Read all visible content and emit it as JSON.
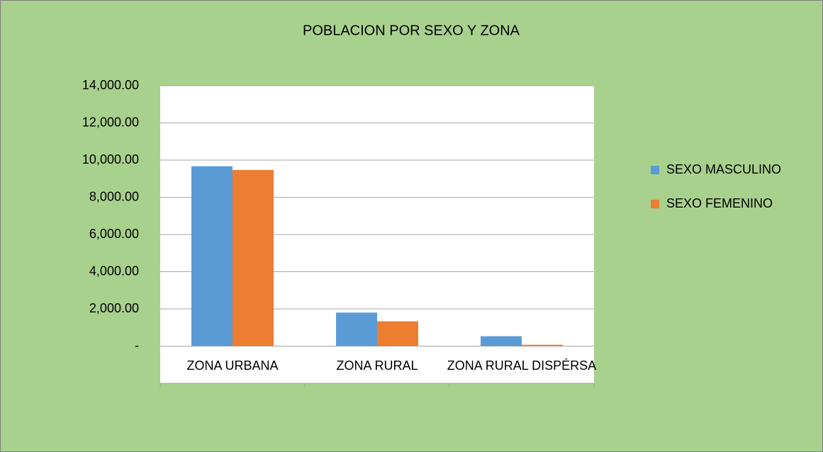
{
  "chart_data": {
    "type": "bar",
    "title": "POBLACION POR SEXO Y ZONA",
    "categories": [
      "ZONA URBANA",
      "ZONA RURAL",
      "ZONA RURAL DISPÉRSA"
    ],
    "series": [
      {
        "name": "SEXO MASCULINO",
        "color": "#5b9bd5",
        "values": [
          9670,
          1800,
          530
        ]
      },
      {
        "name": "SEXO FEMENINO",
        "color": "#ed7d31",
        "values": [
          9470,
          1330,
          70
        ]
      }
    ],
    "ylim": [
      -2000,
      14000
    ],
    "yticks": [
      {
        "value": 0,
        "label": "-"
      },
      {
        "value": 2000,
        "label": "2,000.00"
      },
      {
        "value": 4000,
        "label": "4,000.00"
      },
      {
        "value": 6000,
        "label": "6,000.00"
      },
      {
        "value": 8000,
        "label": "8,000.00"
      },
      {
        "value": 10000,
        "label": "10,000.00"
      },
      {
        "value": 12000,
        "label": "12,000.00"
      },
      {
        "value": 14000,
        "label": "14,000.00"
      }
    ],
    "grid": true,
    "legend": "right"
  }
}
